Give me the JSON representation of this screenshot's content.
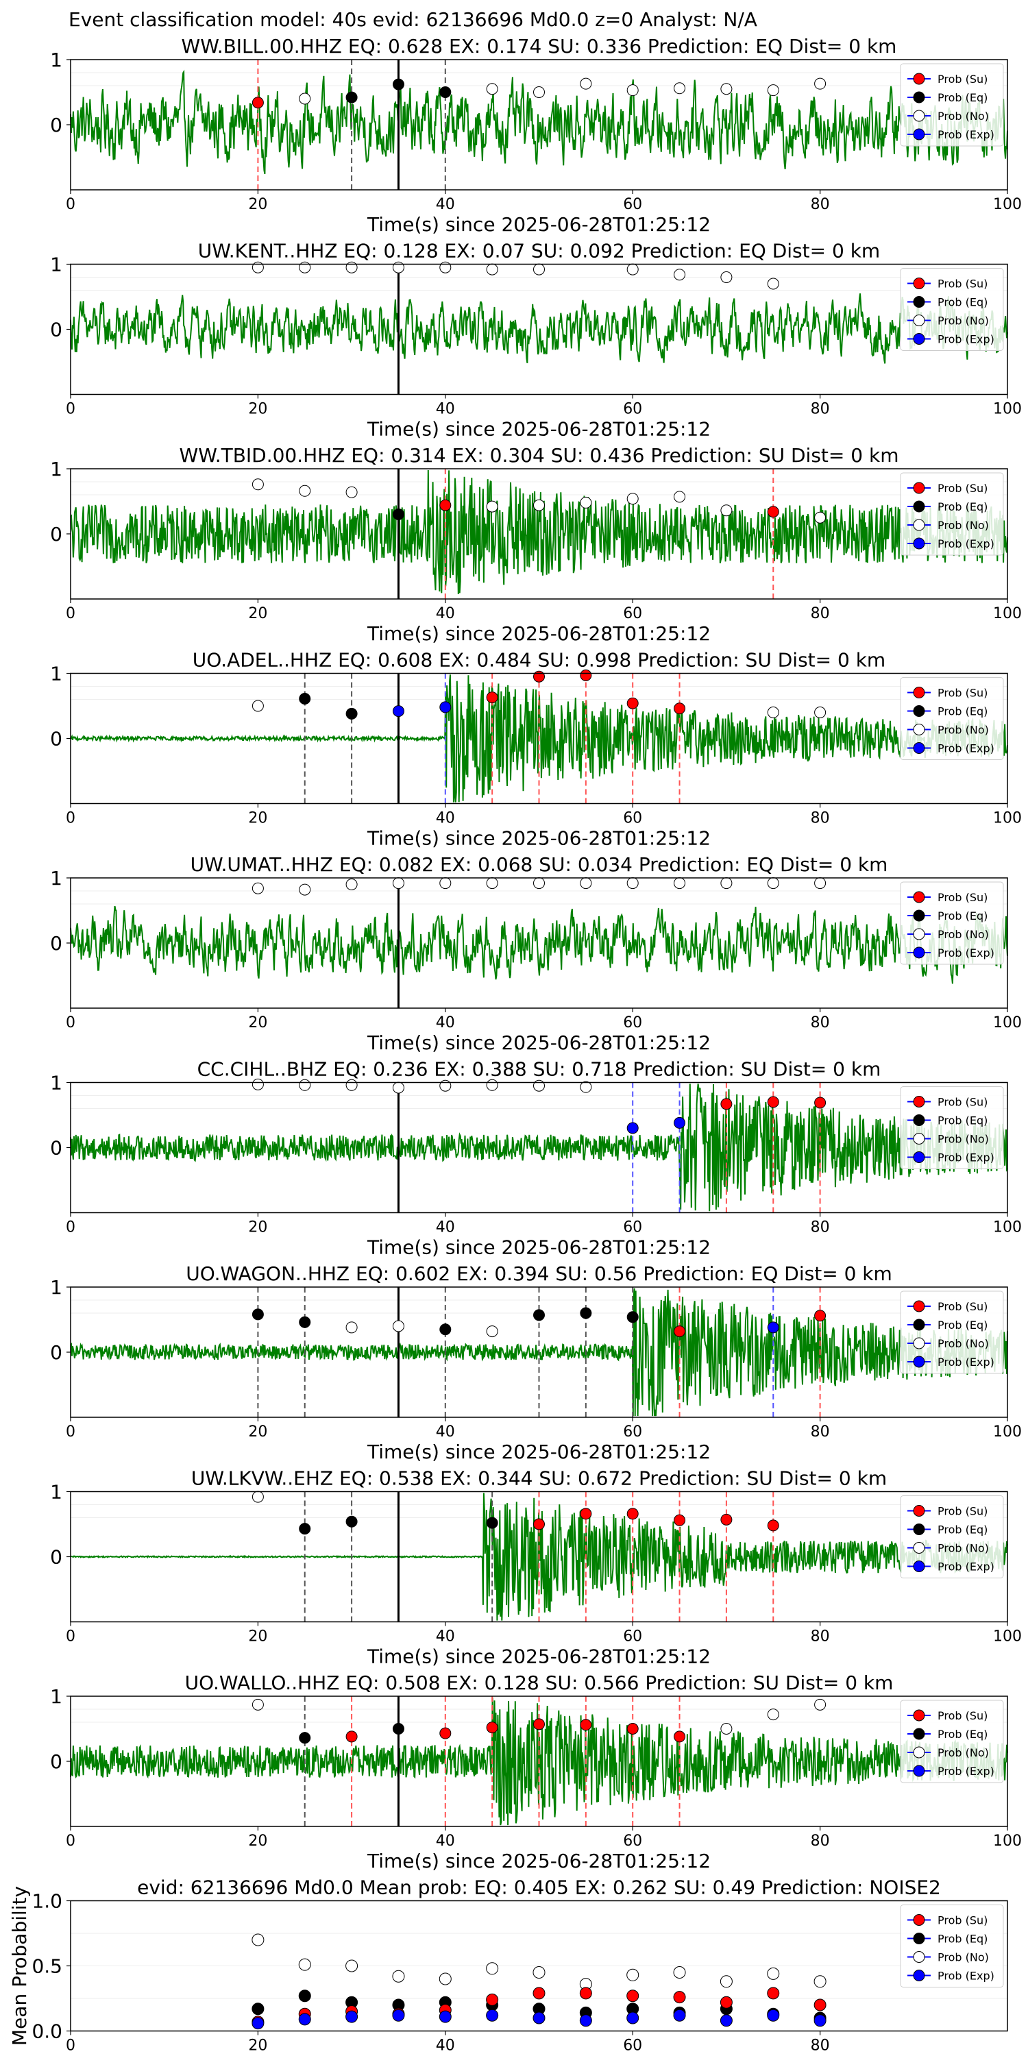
{
  "figure": {
    "suptitle": "Event classification model: 40s evid: 62136696 Md0.0 z=0 Analyst: N/A",
    "legend_labels": [
      "Prob (Su)",
      "Prob (Eq)",
      "Prob (No)",
      "Prob (Exp)"
    ],
    "colors": {
      "waveform": "#008000",
      "su": "#ff0000",
      "eq": "#000000",
      "no": "#ffffff",
      "exp": "#0000ff",
      "vline_su": "#ff5555",
      "vline_eq": "#555555",
      "vline_exp": "#5555ff",
      "event_line": "#000000"
    }
  },
  "chart_data": [
    {
      "type": "line",
      "title": "WW.BILL.00.HHZ   EQ: 0.628  EX: 0.174  SU: 0.336   Prediction: EQ    Dist= 0 km",
      "xlabel": "Time(s) since 2025-06-28T01:25:12",
      "xlim": [
        0,
        100
      ],
      "ylim": [
        -1,
        1
      ],
      "xticks": [
        "0",
        "20",
        "40",
        "60",
        "80",
        "100"
      ],
      "yticks": [
        "1",
        "0"
      ],
      "event_time": 35,
      "noise_level": 0.6,
      "signal_onset": null,
      "points": [
        {
          "t": 20,
          "p": 0.34,
          "cls": "su"
        },
        {
          "t": 25,
          "p": 0.4,
          "cls": "no"
        },
        {
          "t": 30,
          "p": 0.42,
          "cls": "eq"
        },
        {
          "t": 35,
          "p": 0.62,
          "cls": "eq"
        },
        {
          "t": 40,
          "p": 0.5,
          "cls": "eq"
        },
        {
          "t": 45,
          "p": 0.55,
          "cls": "no"
        },
        {
          "t": 50,
          "p": 0.5,
          "cls": "no"
        },
        {
          "t": 55,
          "p": 0.63,
          "cls": "no"
        },
        {
          "t": 60,
          "p": 0.53,
          "cls": "no"
        },
        {
          "t": 65,
          "p": 0.56,
          "cls": "no"
        },
        {
          "t": 70,
          "p": 0.55,
          "cls": "no"
        },
        {
          "t": 75,
          "p": 0.53,
          "cls": "no"
        },
        {
          "t": 80,
          "p": 0.63,
          "cls": "no"
        }
      ],
      "vlines": [
        {
          "t": 20,
          "cls": "su"
        },
        {
          "t": 30,
          "cls": "eq"
        },
        {
          "t": 40,
          "cls": "eq"
        }
      ]
    },
    {
      "type": "line",
      "title": "UW.KENT..HHZ   EQ: 0.128  EX: 0.07  SU: 0.092   Prediction: EQ    Dist= 0 km",
      "xlabel": "Time(s) since 2025-06-28T01:25:12",
      "xlim": [
        0,
        100
      ],
      "ylim": [
        -1,
        1
      ],
      "xticks": [
        "0",
        "20",
        "40",
        "60",
        "80",
        "100"
      ],
      "yticks": [
        "1",
        "0"
      ],
      "event_time": 35,
      "noise_level": 0.45,
      "signal_onset": null,
      "points": [
        {
          "t": 20,
          "p": 0.95,
          "cls": "no"
        },
        {
          "t": 25,
          "p": 0.95,
          "cls": "no"
        },
        {
          "t": 30,
          "p": 0.95,
          "cls": "no"
        },
        {
          "t": 35,
          "p": 0.95,
          "cls": "no"
        },
        {
          "t": 40,
          "p": 0.95,
          "cls": "no"
        },
        {
          "t": 45,
          "p": 0.92,
          "cls": "no"
        },
        {
          "t": 50,
          "p": 0.92,
          "cls": "no"
        },
        {
          "t": 60,
          "p": 0.92,
          "cls": "no"
        },
        {
          "t": 65,
          "p": 0.84,
          "cls": "no"
        },
        {
          "t": 70,
          "p": 0.8,
          "cls": "no"
        },
        {
          "t": 75,
          "p": 0.7,
          "cls": "no"
        }
      ],
      "vlines": []
    },
    {
      "type": "line",
      "title": "WW.TBID.00.HHZ   EQ: 0.314  EX: 0.304  SU: 0.436   Prediction: SU    Dist= 0 km",
      "xlabel": "Time(s) since 2025-06-28T01:25:12",
      "xlim": [
        0,
        100
      ],
      "ylim": [
        -1,
        1
      ],
      "xticks": [
        "0",
        "20",
        "40",
        "60",
        "80",
        "100"
      ],
      "yticks": [
        "1",
        "0"
      ],
      "event_time": 35,
      "noise_level": 0.45,
      "signal_onset": 38,
      "points": [
        {
          "t": 20,
          "p": 0.76,
          "cls": "no"
        },
        {
          "t": 25,
          "p": 0.66,
          "cls": "no"
        },
        {
          "t": 30,
          "p": 0.64,
          "cls": "no"
        },
        {
          "t": 35,
          "p": 0.3,
          "cls": "eq"
        },
        {
          "t": 40,
          "p": 0.44,
          "cls": "su"
        },
        {
          "t": 45,
          "p": 0.42,
          "cls": "no"
        },
        {
          "t": 50,
          "p": 0.44,
          "cls": "no"
        },
        {
          "t": 55,
          "p": 0.48,
          "cls": "no"
        },
        {
          "t": 60,
          "p": 0.54,
          "cls": "no"
        },
        {
          "t": 65,
          "p": 0.57,
          "cls": "no"
        },
        {
          "t": 70,
          "p": 0.36,
          "cls": "no"
        },
        {
          "t": 75,
          "p": 0.34,
          "cls": "su"
        },
        {
          "t": 80,
          "p": 0.25,
          "cls": "no"
        }
      ],
      "vlines": [
        {
          "t": 40,
          "cls": "su"
        },
        {
          "t": 75,
          "cls": "su"
        }
      ]
    },
    {
      "type": "line",
      "title": "UO.ADEL..HHZ   EQ: 0.608  EX: 0.484  SU: 0.998   Prediction: SU    Dist= 0 km",
      "xlabel": "Time(s) since 2025-06-28T01:25:12",
      "xlim": [
        0,
        100
      ],
      "ylim": [
        -1,
        1
      ],
      "xticks": [
        "0",
        "20",
        "40",
        "60",
        "80",
        "100"
      ],
      "yticks": [
        "1",
        "0"
      ],
      "event_time": 35,
      "noise_level": 0.03,
      "signal_onset": 40,
      "points": [
        {
          "t": 20,
          "p": 0.5,
          "cls": "no"
        },
        {
          "t": 25,
          "p": 0.61,
          "cls": "eq"
        },
        {
          "t": 30,
          "p": 0.38,
          "cls": "eq"
        },
        {
          "t": 35,
          "p": 0.42,
          "cls": "exp"
        },
        {
          "t": 40,
          "p": 0.48,
          "cls": "exp"
        },
        {
          "t": 45,
          "p": 0.63,
          "cls": "su"
        },
        {
          "t": 50,
          "p": 0.95,
          "cls": "su"
        },
        {
          "t": 55,
          "p": 0.97,
          "cls": "su"
        },
        {
          "t": 60,
          "p": 0.54,
          "cls": "su"
        },
        {
          "t": 65,
          "p": 0.46,
          "cls": "su"
        },
        {
          "t": 75,
          "p": 0.4,
          "cls": "no"
        },
        {
          "t": 80,
          "p": 0.4,
          "cls": "no"
        }
      ],
      "vlines": [
        {
          "t": 25,
          "cls": "eq"
        },
        {
          "t": 30,
          "cls": "eq"
        },
        {
          "t": 40,
          "cls": "exp"
        },
        {
          "t": 45,
          "cls": "su"
        },
        {
          "t": 50,
          "cls": "su"
        },
        {
          "t": 55,
          "cls": "su"
        },
        {
          "t": 60,
          "cls": "su"
        },
        {
          "t": 65,
          "cls": "su"
        }
      ]
    },
    {
      "type": "line",
      "title": "UW.UMAT..HHZ   EQ: 0.082  EX: 0.068  SU: 0.034   Prediction: EQ    Dist= 0 km",
      "xlabel": "Time(s) since 2025-06-28T01:25:12",
      "xlim": [
        0,
        100
      ],
      "ylim": [
        -1,
        1
      ],
      "xticks": [
        "0",
        "20",
        "40",
        "60",
        "80",
        "100"
      ],
      "yticks": [
        "1",
        "0"
      ],
      "event_time": 35,
      "noise_level": 0.5,
      "signal_onset": null,
      "points": [
        {
          "t": 20,
          "p": 0.84,
          "cls": "no"
        },
        {
          "t": 25,
          "p": 0.82,
          "cls": "no"
        },
        {
          "t": 30,
          "p": 0.9,
          "cls": "no"
        },
        {
          "t": 35,
          "p": 0.92,
          "cls": "no"
        },
        {
          "t": 40,
          "p": 0.92,
          "cls": "no"
        },
        {
          "t": 45,
          "p": 0.92,
          "cls": "no"
        },
        {
          "t": 50,
          "p": 0.92,
          "cls": "no"
        },
        {
          "t": 55,
          "p": 0.92,
          "cls": "no"
        },
        {
          "t": 60,
          "p": 0.92,
          "cls": "no"
        },
        {
          "t": 65,
          "p": 0.92,
          "cls": "no"
        },
        {
          "t": 70,
          "p": 0.92,
          "cls": "no"
        },
        {
          "t": 75,
          "p": 0.92,
          "cls": "no"
        },
        {
          "t": 80,
          "p": 0.92,
          "cls": "no"
        }
      ],
      "vlines": []
    },
    {
      "type": "line",
      "title": "CC.CIHL..BHZ   EQ: 0.236  EX: 0.388  SU: 0.718   Prediction: SU    Dist= 0 km",
      "xlabel": "Time(s) since 2025-06-28T01:25:12",
      "xlim": [
        0,
        100
      ],
      "ylim": [
        -1,
        1
      ],
      "xticks": [
        "0",
        "20",
        "40",
        "60",
        "80",
        "100"
      ],
      "yticks": [
        "1",
        "0"
      ],
      "event_time": 35,
      "noise_level": 0.2,
      "signal_onset": 65,
      "points": [
        {
          "t": 20,
          "p": 0.97,
          "cls": "no"
        },
        {
          "t": 25,
          "p": 0.96,
          "cls": "no"
        },
        {
          "t": 30,
          "p": 0.96,
          "cls": "no"
        },
        {
          "t": 35,
          "p": 0.92,
          "cls": "no"
        },
        {
          "t": 40,
          "p": 0.95,
          "cls": "no"
        },
        {
          "t": 45,
          "p": 0.96,
          "cls": "no"
        },
        {
          "t": 50,
          "p": 0.95,
          "cls": "no"
        },
        {
          "t": 55,
          "p": 0.93,
          "cls": "no"
        },
        {
          "t": 60,
          "p": 0.3,
          "cls": "exp"
        },
        {
          "t": 65,
          "p": 0.38,
          "cls": "exp"
        },
        {
          "t": 70,
          "p": 0.67,
          "cls": "su"
        },
        {
          "t": 75,
          "p": 0.7,
          "cls": "su"
        },
        {
          "t": 80,
          "p": 0.69,
          "cls": "su"
        }
      ],
      "vlines": [
        {
          "t": 60,
          "cls": "exp"
        },
        {
          "t": 65,
          "cls": "exp"
        },
        {
          "t": 70,
          "cls": "su"
        },
        {
          "t": 75,
          "cls": "su"
        },
        {
          "t": 80,
          "cls": "su"
        }
      ]
    },
    {
      "type": "line",
      "title": "UO.WAGON..HHZ   EQ: 0.602  EX: 0.394  SU: 0.56   Prediction: EQ    Dist= 0 km",
      "xlabel": "Time(s) since 2025-06-28T01:25:12",
      "xlim": [
        0,
        100
      ],
      "ylim": [
        -1,
        1
      ],
      "xticks": [
        "0",
        "20",
        "40",
        "60",
        "80",
        "100"
      ],
      "yticks": [
        "1",
        "0"
      ],
      "event_time": 35,
      "noise_level": 0.12,
      "signal_onset": 60,
      "points": [
        {
          "t": 20,
          "p": 0.58,
          "cls": "eq"
        },
        {
          "t": 25,
          "p": 0.46,
          "cls": "eq"
        },
        {
          "t": 30,
          "p": 0.38,
          "cls": "no"
        },
        {
          "t": 35,
          "p": 0.4,
          "cls": "no"
        },
        {
          "t": 40,
          "p": 0.35,
          "cls": "eq"
        },
        {
          "t": 45,
          "p": 0.32,
          "cls": "no"
        },
        {
          "t": 50,
          "p": 0.57,
          "cls": "eq"
        },
        {
          "t": 55,
          "p": 0.6,
          "cls": "eq"
        },
        {
          "t": 60,
          "p": 0.54,
          "cls": "eq"
        },
        {
          "t": 65,
          "p": 0.32,
          "cls": "su"
        },
        {
          "t": 75,
          "p": 0.38,
          "cls": "exp"
        },
        {
          "t": 80,
          "p": 0.56,
          "cls": "su"
        }
      ],
      "vlines": [
        {
          "t": 20,
          "cls": "eq"
        },
        {
          "t": 25,
          "cls": "eq"
        },
        {
          "t": 40,
          "cls": "eq"
        },
        {
          "t": 50,
          "cls": "eq"
        },
        {
          "t": 55,
          "cls": "eq"
        },
        {
          "t": 60,
          "cls": "eq"
        },
        {
          "t": 65,
          "cls": "su"
        },
        {
          "t": 75,
          "cls": "exp"
        },
        {
          "t": 80,
          "cls": "su"
        }
      ]
    },
    {
      "type": "line",
      "title": "UW.LKVW..EHZ   EQ: 0.538  EX: 0.344  SU: 0.672   Prediction: SU    Dist= 0 km",
      "xlabel": "Time(s) since 2025-06-28T01:25:12",
      "xlim": [
        0,
        100
      ],
      "ylim": [
        -1,
        1
      ],
      "xticks": [
        "0",
        "20",
        "40",
        "60",
        "80",
        "100"
      ],
      "yticks": [
        "1",
        "0"
      ],
      "event_time": 35,
      "noise_level": 0.01,
      "signal_onset": 44,
      "points": [
        {
          "t": 20,
          "p": 0.92,
          "cls": "no"
        },
        {
          "t": 25,
          "p": 0.43,
          "cls": "eq"
        },
        {
          "t": 30,
          "p": 0.54,
          "cls": "eq"
        },
        {
          "t": 45,
          "p": 0.52,
          "cls": "eq"
        },
        {
          "t": 50,
          "p": 0.5,
          "cls": "su"
        },
        {
          "t": 55,
          "p": 0.66,
          "cls": "su"
        },
        {
          "t": 60,
          "p": 0.66,
          "cls": "su"
        },
        {
          "t": 65,
          "p": 0.56,
          "cls": "su"
        },
        {
          "t": 70,
          "p": 0.57,
          "cls": "su"
        },
        {
          "t": 75,
          "p": 0.48,
          "cls": "su"
        }
      ],
      "vlines": [
        {
          "t": 25,
          "cls": "eq"
        },
        {
          "t": 30,
          "cls": "eq"
        },
        {
          "t": 45,
          "cls": "eq"
        },
        {
          "t": 50,
          "cls": "su"
        },
        {
          "t": 55,
          "cls": "su"
        },
        {
          "t": 60,
          "cls": "su"
        },
        {
          "t": 65,
          "cls": "su"
        },
        {
          "t": 70,
          "cls": "su"
        },
        {
          "t": 75,
          "cls": "su"
        }
      ]
    },
    {
      "type": "line",
      "title": "UO.WALLO..HHZ   EQ: 0.508  EX: 0.128  SU: 0.566   Prediction: SU    Dist= 0 km",
      "xlabel": "Time(s) since 2025-06-28T01:25:12",
      "xlim": [
        0,
        100
      ],
      "ylim": [
        -1,
        1
      ],
      "xticks": [
        "0",
        "20",
        "40",
        "60",
        "80",
        "100"
      ],
      "yticks": [
        "1",
        "0"
      ],
      "event_time": 35,
      "noise_level": 0.25,
      "signal_onset": 45,
      "points": [
        {
          "t": 20,
          "p": 0.87,
          "cls": "no"
        },
        {
          "t": 25,
          "p": 0.36,
          "cls": "eq"
        },
        {
          "t": 30,
          "p": 0.38,
          "cls": "su"
        },
        {
          "t": 35,
          "p": 0.5,
          "cls": "eq"
        },
        {
          "t": 40,
          "p": 0.43,
          "cls": "su"
        },
        {
          "t": 45,
          "p": 0.52,
          "cls": "su"
        },
        {
          "t": 50,
          "p": 0.57,
          "cls": "su"
        },
        {
          "t": 55,
          "p": 0.56,
          "cls": "su"
        },
        {
          "t": 60,
          "p": 0.5,
          "cls": "su"
        },
        {
          "t": 65,
          "p": 0.38,
          "cls": "su"
        },
        {
          "t": 70,
          "p": 0.5,
          "cls": "no"
        },
        {
          "t": 75,
          "p": 0.72,
          "cls": "no"
        },
        {
          "t": 80,
          "p": 0.87,
          "cls": "no"
        }
      ],
      "vlines": [
        {
          "t": 25,
          "cls": "eq"
        },
        {
          "t": 30,
          "cls": "su"
        },
        {
          "t": 40,
          "cls": "su"
        },
        {
          "t": 45,
          "cls": "su"
        },
        {
          "t": 50,
          "cls": "su"
        },
        {
          "t": 55,
          "cls": "su"
        },
        {
          "t": 60,
          "cls": "su"
        },
        {
          "t": 65,
          "cls": "su"
        }
      ]
    },
    {
      "type": "scatter",
      "title": "evid: 62136696  Md0.0   Mean prob:   EQ: 0.405  EX: 0.262  SU: 0.49   Prediction: NOISE2",
      "ylabel": "Mean Probability",
      "xlim": [
        0,
        100
      ],
      "ylim": [
        0,
        1
      ],
      "xticks": [
        "0",
        "20",
        "40",
        "60",
        "80"
      ],
      "yticks": [
        "1.0",
        "0.5",
        "0.0"
      ],
      "x": [
        20,
        25,
        30,
        35,
        40,
        45,
        50,
        55,
        60,
        65,
        70,
        75,
        80
      ],
      "series": [
        {
          "name": "Prob (No)",
          "cls": "no",
          "values": [
            0.7,
            0.51,
            0.5,
            0.42,
            0.4,
            0.48,
            0.45,
            0.36,
            0.43,
            0.45,
            0.38,
            0.44,
            0.38
          ]
        },
        {
          "name": "Prob (Eq)",
          "cls": "eq",
          "values": [
            0.17,
            0.27,
            0.22,
            0.2,
            0.22,
            0.2,
            0.17,
            0.14,
            0.17,
            0.14,
            0.17,
            0.13,
            0.1
          ]
        },
        {
          "name": "Prob (Su)",
          "cls": "su",
          "values": [
            0.07,
            0.13,
            0.15,
            0.13,
            0.16,
            0.24,
            0.29,
            0.29,
            0.27,
            0.26,
            0.22,
            0.29,
            0.2
          ]
        },
        {
          "name": "Prob (Exp)",
          "cls": "exp",
          "values": [
            0.06,
            0.09,
            0.11,
            0.12,
            0.11,
            0.12,
            0.1,
            0.08,
            0.1,
            0.12,
            0.08,
            0.12,
            0.08
          ]
        }
      ]
    }
  ]
}
